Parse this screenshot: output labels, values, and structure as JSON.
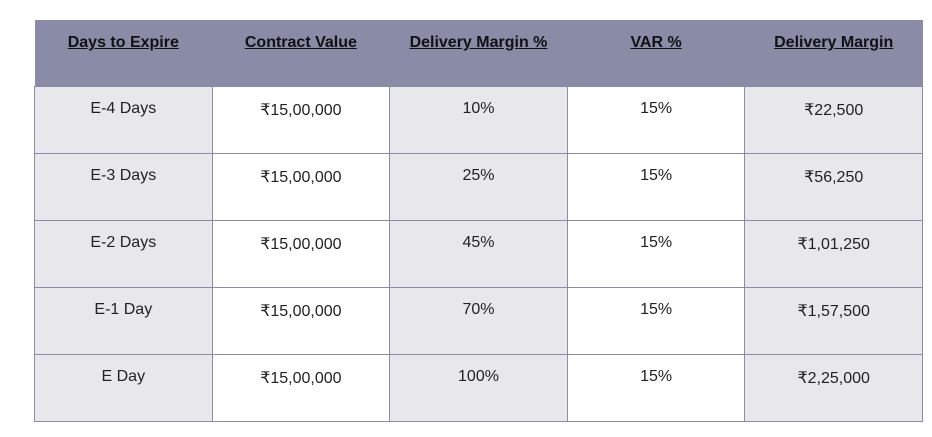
{
  "table": {
    "headers": [
      "Days to Expire",
      "Contract Value",
      "Delivery Margin %",
      "VAR %",
      "Delivery Margin"
    ],
    "rows": [
      [
        "E-4 Days",
        "₹15,00,000",
        "10%",
        "15%",
        "₹22,500"
      ],
      [
        "E-3 Days",
        "₹15,00,000",
        "25%",
        "15%",
        "₹56,250"
      ],
      [
        "E-2 Days",
        "₹15,00,000",
        "45%",
        "15%",
        "₹1,01,250"
      ],
      [
        "E-1 Day",
        "₹15,00,000",
        "70%",
        "15%",
        "₹1,57,500"
      ],
      [
        "E Day",
        "₹15,00,000",
        "100%",
        "15%",
        "₹2,25,000"
      ]
    ]
  }
}
